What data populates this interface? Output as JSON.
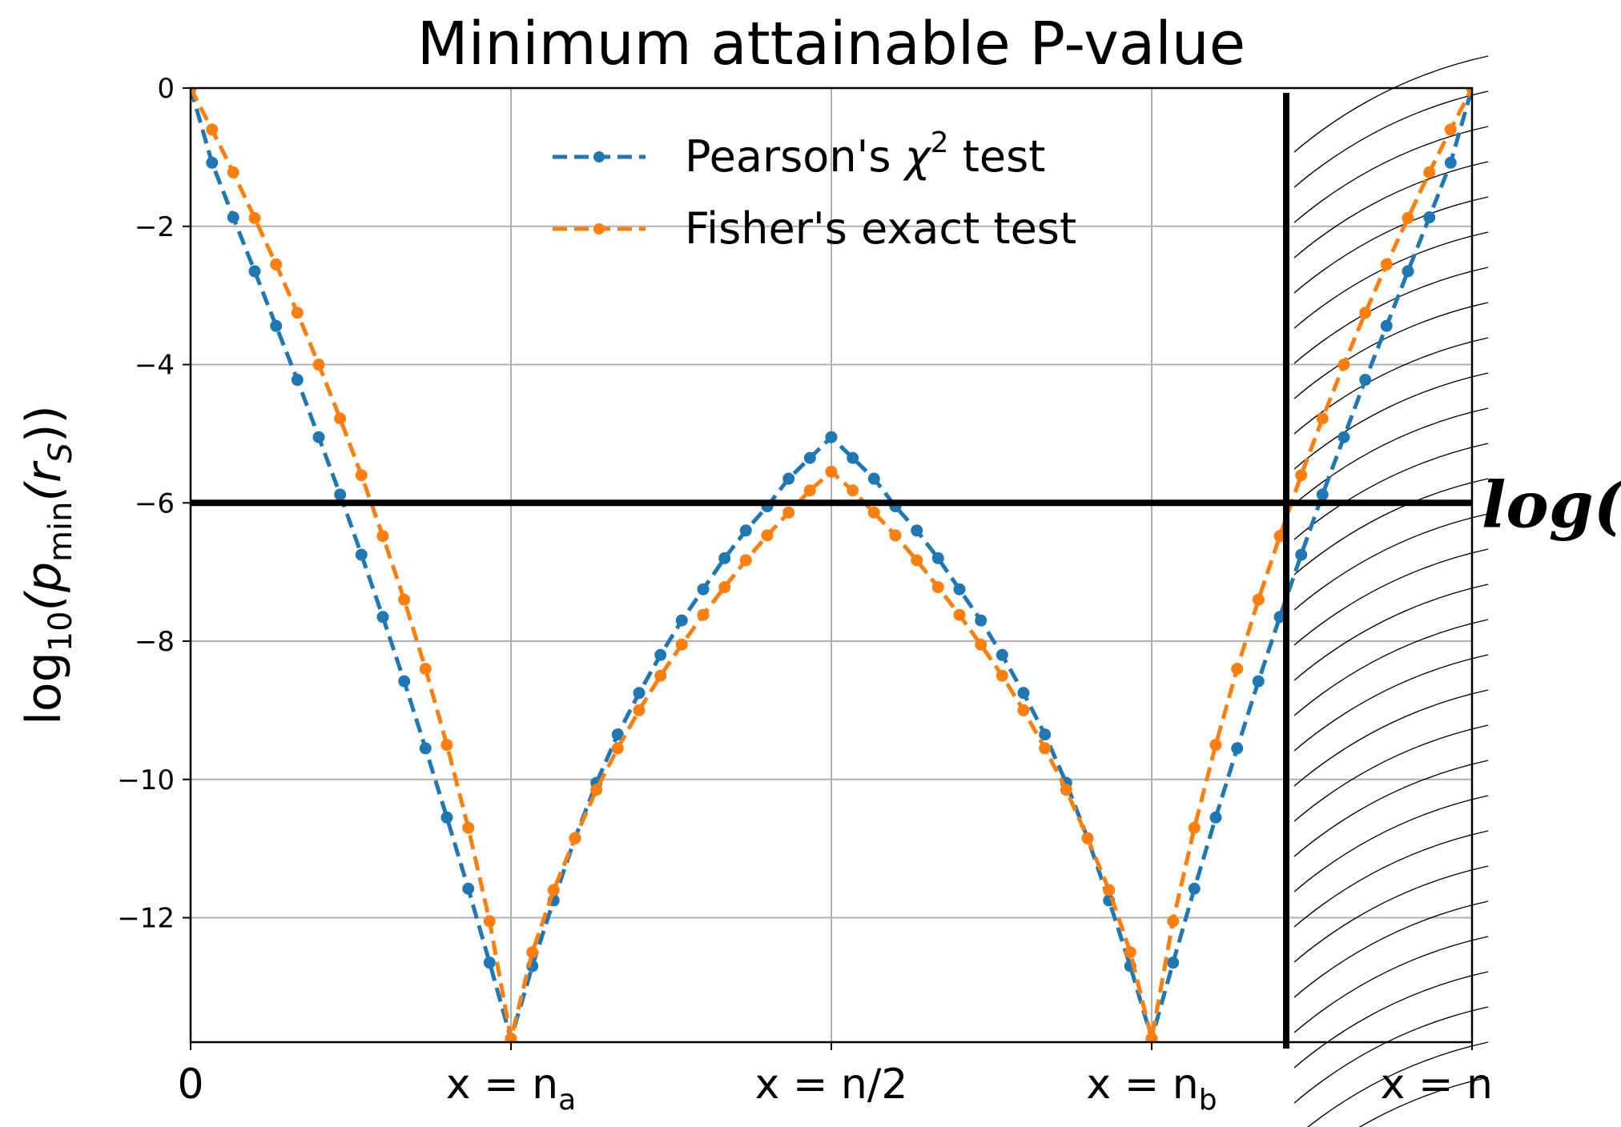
{
  "chart_data": {
    "type": "line",
    "title": "Minimum attainable P-value",
    "ylabel_parts": {
      "prefix": "log",
      "base": "10",
      "open": "(p",
      "sub": "min",
      "mid": "(r",
      "sub2": "S",
      "close": "))"
    },
    "ylim": [
      -13.8,
      0
    ],
    "yticks": [
      0,
      -2,
      -4,
      -6,
      -8,
      -10,
      -12
    ],
    "ytick_labels": [
      "0",
      "−2",
      "−4",
      "−6",
      "−8",
      "−10",
      "−12"
    ],
    "xlim": [
      0,
      1
    ],
    "xtick_positions": [
      0,
      0.25,
      0.5,
      0.75,
      1
    ],
    "xtick_labels": [
      "0",
      "x = n_a",
      "x = n/2",
      "x = n_b",
      "x = n"
    ],
    "xtick_label_parts": [
      {
        "main": "0",
        "sub": ""
      },
      {
        "main": "x = n",
        "sub": "a"
      },
      {
        "main": "x = n/2",
        "sub": ""
      },
      {
        "main": "x = n",
        "sub": "b"
      },
      {
        "main": "x = n",
        "sub": ""
      }
    ],
    "grid": true,
    "legend_position": "top-center",
    "series": [
      {
        "name": "Pearson's χ² test",
        "legend_parts": {
          "pre": "Pearson's ",
          "chi": "χ",
          "sup": "2",
          "post": " test"
        },
        "color": "#1f77b4",
        "style": "dashed-with-markers",
        "x": [
          0,
          0.0167,
          0.0333,
          0.05,
          0.0667,
          0.0833,
          0.1,
          0.1167,
          0.1333,
          0.15,
          0.1667,
          0.1833,
          0.2,
          0.2167,
          0.2333,
          0.25,
          0.2667,
          0.2833,
          0.3,
          0.3167,
          0.3333,
          0.35,
          0.3667,
          0.3833,
          0.4,
          0.4167,
          0.4333,
          0.45,
          0.4667,
          0.4833,
          0.5,
          0.5167,
          0.5333,
          0.55,
          0.5667,
          0.5833,
          0.6,
          0.6167,
          0.6333,
          0.65,
          0.6667,
          0.6833,
          0.7,
          0.7167,
          0.7333,
          0.75,
          0.7667,
          0.7833,
          0.8,
          0.8167,
          0.8333,
          0.85,
          0.8667,
          0.8833,
          0.9,
          0.9167,
          0.9333,
          0.95,
          0.9667,
          0.9833,
          1
        ],
        "y": [
          0,
          -1.08,
          -1.87,
          -2.65,
          -3.44,
          -4.22,
          -5.05,
          -5.88,
          -6.75,
          -7.65,
          -8.58,
          -9.55,
          -10.55,
          -11.58,
          -12.65,
          -13.75,
          -12.7,
          -11.75,
          -10.85,
          -10.05,
          -9.35,
          -8.75,
          -8.2,
          -7.7,
          -7.25,
          -6.8,
          -6.4,
          -6.05,
          -5.65,
          -5.35,
          -5.05,
          -5.35,
          -5.65,
          -6.05,
          -6.4,
          -6.8,
          -7.25,
          -7.7,
          -8.2,
          -8.75,
          -9.35,
          -10.05,
          -10.85,
          -11.75,
          -12.7,
          -13.75,
          -12.65,
          -11.58,
          -10.55,
          -9.55,
          -8.58,
          -7.65,
          -6.75,
          -5.88,
          -5.05,
          -4.22,
          -3.44,
          -2.65,
          -1.87,
          -1.08,
          0
        ]
      },
      {
        "name": "Fisher's exact test",
        "color": "#ff7f0e",
        "style": "dashed-with-markers",
        "x": [
          0,
          0.0167,
          0.0333,
          0.05,
          0.0667,
          0.0833,
          0.1,
          0.1167,
          0.1333,
          0.15,
          0.1667,
          0.1833,
          0.2,
          0.2167,
          0.2333,
          0.25,
          0.2667,
          0.2833,
          0.3,
          0.3167,
          0.3333,
          0.35,
          0.3667,
          0.3833,
          0.4,
          0.4167,
          0.4333,
          0.45,
          0.4667,
          0.4833,
          0.5,
          0.5167,
          0.5333,
          0.55,
          0.5667,
          0.5833,
          0.6,
          0.6167,
          0.6333,
          0.65,
          0.6667,
          0.6833,
          0.7,
          0.7167,
          0.7333,
          0.75,
          0.7667,
          0.7833,
          0.8,
          0.8167,
          0.8333,
          0.85,
          0.8667,
          0.8833,
          0.9,
          0.9167,
          0.9333,
          0.95,
          0.9667,
          0.9833,
          1
        ],
        "y": [
          0,
          -0.6,
          -1.22,
          -1.88,
          -2.55,
          -3.25,
          -4.0,
          -4.78,
          -5.6,
          -6.48,
          -7.4,
          -8.4,
          -9.5,
          -10.7,
          -12.05,
          -13.75,
          -12.5,
          -11.6,
          -10.85,
          -10.15,
          -9.55,
          -9.0,
          -8.5,
          -8.05,
          -7.62,
          -7.22,
          -6.83,
          -6.47,
          -6.14,
          -5.82,
          -5.55,
          -5.82,
          -6.14,
          -6.47,
          -6.83,
          -7.22,
          -7.62,
          -8.05,
          -8.5,
          -9.0,
          -9.55,
          -10.15,
          -10.85,
          -11.6,
          -12.5,
          -13.75,
          -12.05,
          -10.7,
          -9.5,
          -8.4,
          -7.4,
          -6.48,
          -5.6,
          -4.78,
          -4.0,
          -3.25,
          -2.55,
          -1.88,
          -1.22,
          -0.6,
          0
        ]
      }
    ],
    "annotations": {
      "threshold_y": -6,
      "threshold_label": "log(S)",
      "vertical_line_x": 0.855,
      "hatched_region_x": [
        0.855,
        1
      ]
    }
  }
}
